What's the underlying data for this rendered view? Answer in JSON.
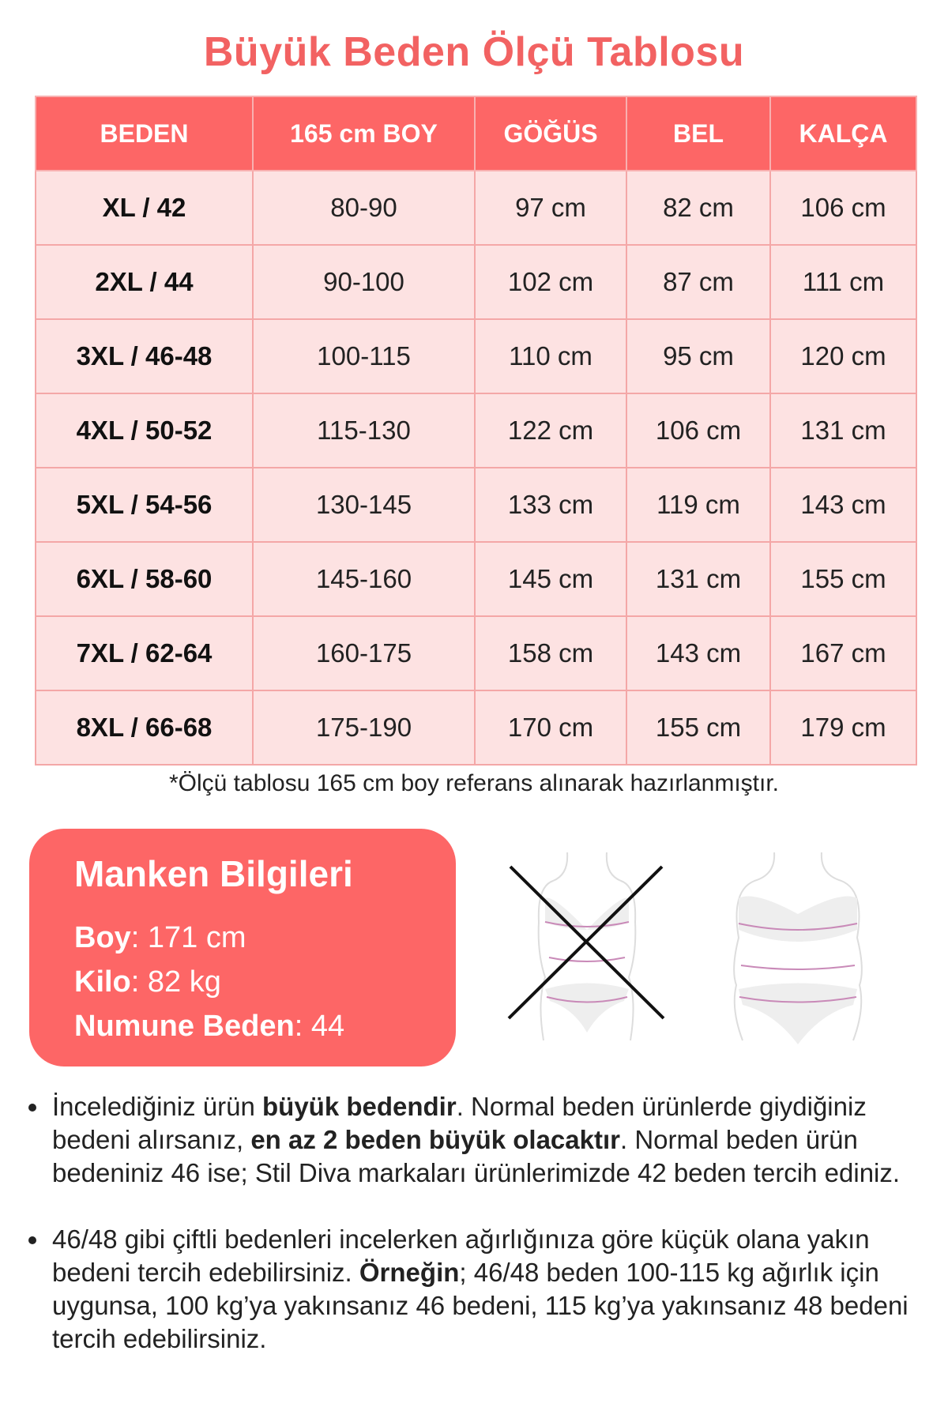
{
  "title": "Büyük Beden Ölçü Tablosu",
  "table": {
    "headers": [
      "BEDEN",
      "165 cm BOY",
      "GÖĞÜS",
      "BEL",
      "KALÇA"
    ],
    "rows": [
      [
        "XL / 42",
        "80-90",
        "97 cm",
        "82 cm",
        "106 cm"
      ],
      [
        "2XL / 44",
        "90-100",
        "102 cm",
        "87 cm",
        "111 cm"
      ],
      [
        "3XL / 46-48",
        "100-115",
        "110 cm",
        "95 cm",
        "120 cm"
      ],
      [
        "4XL / 50-52",
        "115-130",
        "122 cm",
        "106 cm",
        "131 cm"
      ],
      [
        "5XL / 54-56",
        "130-145",
        "133 cm",
        "119 cm",
        "143 cm"
      ],
      [
        "6XL / 58-60",
        "145-160",
        "145 cm",
        "131 cm",
        "155 cm"
      ],
      [
        "7XL / 62-64",
        "160-175",
        "158 cm",
        "143 cm",
        "167 cm"
      ],
      [
        "8XL / 66-68",
        "175-190",
        "170 cm",
        "155 cm",
        "179 cm"
      ]
    ]
  },
  "note": "*Ölçü tablosu 165 cm boy referans alınarak hazırlanmıştır.",
  "manken": {
    "title": "Manken Bilgileri",
    "items": [
      {
        "label": "Boy",
        "value": ": 171 cm"
      },
      {
        "label": "Kilo",
        "value": ": 82 kg"
      },
      {
        "label": "Numune Beden",
        "value": ": 44"
      }
    ]
  },
  "figures": {
    "wrong_icon": "crossed-out-body-figure",
    "right_icon": "body-figure"
  },
  "bullets": [
    {
      "parts": [
        {
          "text": "İncelediğiniz ürün "
        },
        {
          "text": "büyük bedendir",
          "bold": true
        },
        {
          "text": ". Normal beden ürünlerde giydiğiniz bedeni alırsanız, "
        },
        {
          "text": "en az 2 beden büyük olacaktır",
          "bold": true
        },
        {
          "text": ". Normal beden ürün bedeniniz 46 ise; Stil Diva markaları ürünlerimizde 42 beden tercih ediniz."
        }
      ]
    },
    {
      "parts": [
        {
          "text": "46/48 gibi çiftli bedenleri incelerken ağırlığınıza göre küçük olana yakın bedeni tercih edebilirsiniz. "
        },
        {
          "text": "Örneğin",
          "bold": true
        },
        {
          "text": "; 46/48 beden 100-115 kg ağırlık için uygunsa, 100 kg’ya yakınsanız 46 bedeni, 115 kg’ya yakınsanız 48 bedeni tercih edebilirsiniz."
        }
      ]
    }
  ],
  "colors": {
    "accent": "#fd6666",
    "title": "#f26262",
    "row_bg": "#fde2e2",
    "border": "#f4a7a7"
  }
}
